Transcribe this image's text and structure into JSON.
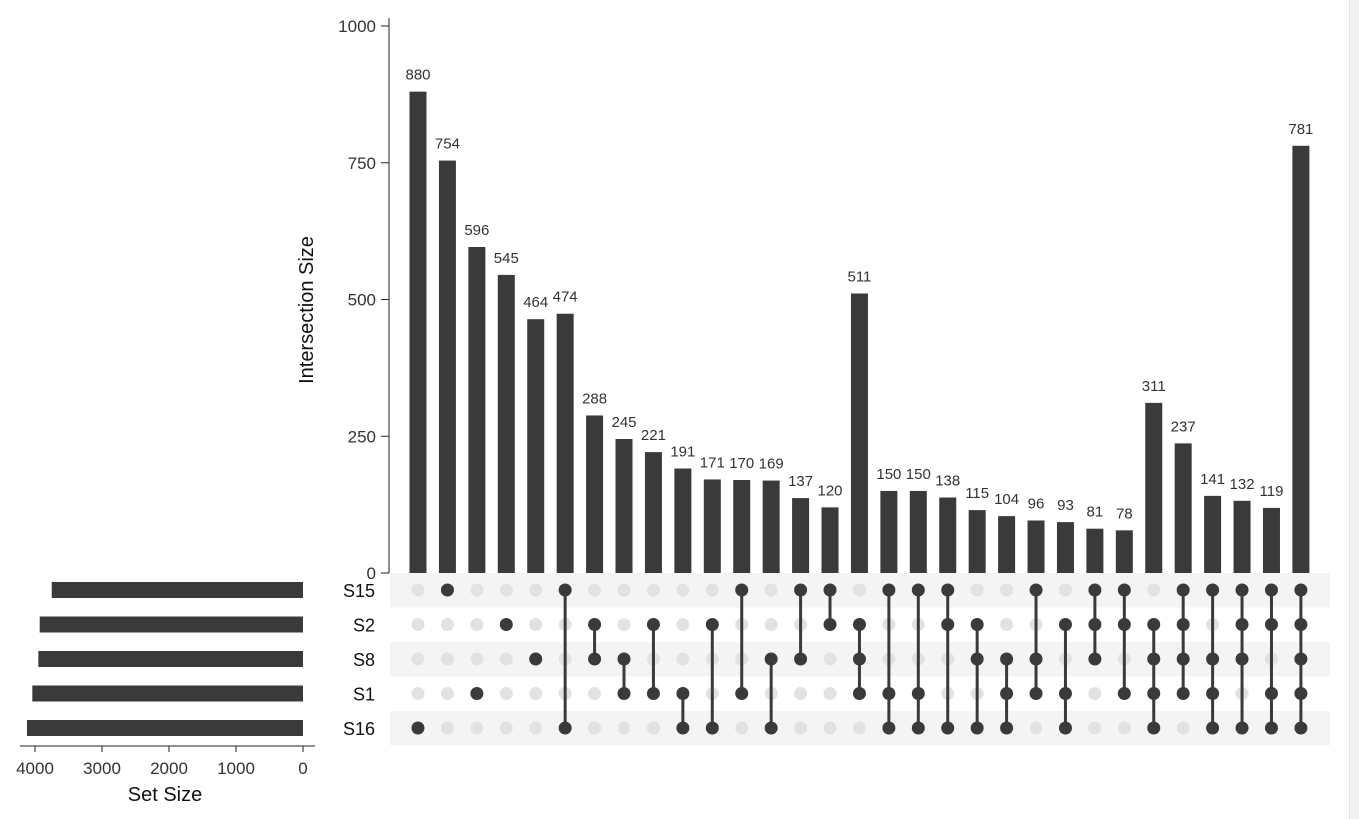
{
  "chart_data": {
    "type": "upset",
    "sets": [
      "S15",
      "S2",
      "S8",
      "S1",
      "S16"
    ],
    "set_sizes": [
      3750,
      3930,
      3950,
      4040,
      4120
    ],
    "set_size_axis": {
      "label": "Set Size",
      "ticks": [
        4000,
        3000,
        2000,
        1000,
        0
      ],
      "range": [
        0,
        4300
      ]
    },
    "intersection_axis": {
      "label": "Intersection Size",
      "ticks": [
        0,
        250,
        500,
        750,
        1000
      ],
      "range": [
        0,
        1000
      ]
    },
    "intersections": [
      {
        "sets": [
          "S16"
        ],
        "value": 880
      },
      {
        "sets": [
          "S15"
        ],
        "value": 754
      },
      {
        "sets": [
          "S1"
        ],
        "value": 596
      },
      {
        "sets": [
          "S2"
        ],
        "value": 545
      },
      {
        "sets": [
          "S8"
        ],
        "value": 464
      },
      {
        "sets": [
          "S15",
          "S16"
        ],
        "value": 474
      },
      {
        "sets": [
          "S2",
          "S8"
        ],
        "value": 288
      },
      {
        "sets": [
          "S8",
          "S1"
        ],
        "value": 245
      },
      {
        "sets": [
          "S2",
          "S1"
        ],
        "value": 221
      },
      {
        "sets": [
          "S1",
          "S16"
        ],
        "value": 191
      },
      {
        "sets": [
          "S2",
          "S16"
        ],
        "value": 171
      },
      {
        "sets": [
          "S15",
          "S1"
        ],
        "value": 170
      },
      {
        "sets": [
          "S8",
          "S16"
        ],
        "value": 169
      },
      {
        "sets": [
          "S15",
          "S8"
        ],
        "value": 137
      },
      {
        "sets": [
          "S15",
          "S2"
        ],
        "value": 120
      },
      {
        "sets": [
          "S2",
          "S8",
          "S1"
        ],
        "value": 511
      },
      {
        "sets": [
          "S15",
          "S1",
          "S16"
        ],
        "value": 150
      },
      {
        "sets": [
          "S15",
          "S1",
          "S16"
        ],
        "value": 150
      },
      {
        "sets": [
          "S15",
          "S2",
          "S16"
        ],
        "value": 138
      },
      {
        "sets": [
          "S2",
          "S8",
          "S16"
        ],
        "value": 115
      },
      {
        "sets": [
          "S8",
          "S1",
          "S16"
        ],
        "value": 104
      },
      {
        "sets": [
          "S15",
          "S8",
          "S1"
        ],
        "value": 96
      },
      {
        "sets": [
          "S2",
          "S1",
          "S16"
        ],
        "value": 93
      },
      {
        "sets": [
          "S15",
          "S2",
          "S8"
        ],
        "value": 81
      },
      {
        "sets": [
          "S15",
          "S2",
          "S1"
        ],
        "value": 78
      },
      {
        "sets": [
          "S2",
          "S8",
          "S1",
          "S16"
        ],
        "value": 311
      },
      {
        "sets": [
          "S15",
          "S2",
          "S8",
          "S1"
        ],
        "value": 237
      },
      {
        "sets": [
          "S15",
          "S8",
          "S1",
          "S16"
        ],
        "value": 141
      },
      {
        "sets": [
          "S15",
          "S2",
          "S8",
          "S16"
        ],
        "value": 132
      },
      {
        "sets": [
          "S15",
          "S2",
          "S1",
          "S16"
        ],
        "value": 119
      },
      {
        "sets": [
          "S15",
          "S2",
          "S8",
          "S1",
          "S16"
        ],
        "value": 781
      }
    ],
    "colors": {
      "bar": "#3a3a3a",
      "dot_active": "#3a3a3a",
      "dot_inactive": "#e2e2e2",
      "row_stripe": "#f4f4f4"
    }
  }
}
